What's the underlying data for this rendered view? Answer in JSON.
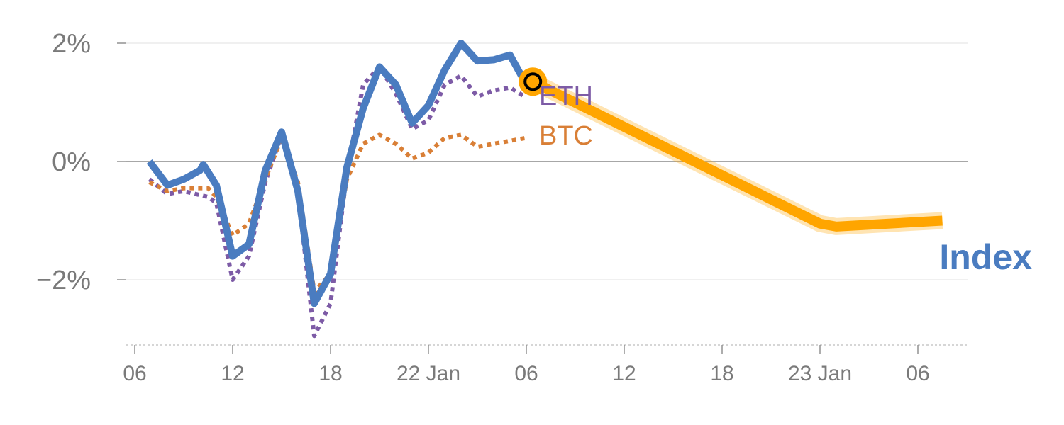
{
  "chart_data": {
    "type": "line",
    "y_ticks": [
      {
        "value": 2,
        "label": "2%"
      },
      {
        "value": 0,
        "label": "0%"
      },
      {
        "value": -2,
        "label": "−2%"
      }
    ],
    "x_ticks": [
      {
        "value": 0,
        "label": "06"
      },
      {
        "value": 6,
        "label": "12"
      },
      {
        "value": 12,
        "label": "18"
      },
      {
        "value": 18,
        "label": "22 Jan"
      },
      {
        "value": 24,
        "label": "06"
      },
      {
        "value": 30,
        "label": "12"
      },
      {
        "value": 36,
        "label": "18"
      },
      {
        "value": 42,
        "label": "23 Jan"
      },
      {
        "value": 48,
        "label": "06"
      }
    ],
    "xlim": [
      0,
      51
    ],
    "ylim": [
      -3.1,
      2.4
    ],
    "grid": true,
    "series": [
      {
        "name": "Index",
        "style": "solid",
        "color": "#4a7cc0",
        "points": [
          [
            0.9,
            0.0
          ],
          [
            2,
            -0.4
          ],
          [
            3,
            -0.3
          ],
          [
            4,
            -0.15
          ],
          [
            4.2,
            -0.05
          ],
          [
            5,
            -0.4
          ],
          [
            6,
            -1.6
          ],
          [
            7,
            -1.4
          ],
          [
            8,
            -0.15
          ],
          [
            9,
            0.5
          ],
          [
            10,
            -0.5
          ],
          [
            11,
            -2.4
          ],
          [
            12,
            -1.9
          ],
          [
            13,
            -0.1
          ],
          [
            14,
            0.9
          ],
          [
            15,
            1.6
          ],
          [
            16,
            1.3
          ],
          [
            17,
            0.65
          ],
          [
            18,
            0.95
          ],
          [
            19,
            1.55
          ],
          [
            20,
            2.0
          ],
          [
            21,
            1.7
          ],
          [
            22,
            1.72
          ],
          [
            23,
            1.8
          ],
          [
            24,
            1.3
          ]
        ]
      },
      {
        "name": "ETH",
        "style": "dotted",
        "color": "#7d5ba6",
        "points": [
          [
            0.9,
            -0.3
          ],
          [
            2,
            -0.55
          ],
          [
            3,
            -0.5
          ],
          [
            4.5,
            -0.6
          ],
          [
            5,
            -0.7
          ],
          [
            6,
            -2.0
          ],
          [
            7,
            -1.6
          ],
          [
            8,
            -0.35
          ],
          [
            9,
            0.45
          ],
          [
            10,
            -0.5
          ],
          [
            11,
            -2.95
          ],
          [
            12,
            -2.4
          ],
          [
            13,
            -0.2
          ],
          [
            14,
            1.3
          ],
          [
            15,
            1.6
          ],
          [
            16,
            1.15
          ],
          [
            17,
            0.55
          ],
          [
            18,
            0.7
          ],
          [
            19,
            1.3
          ],
          [
            20,
            1.45
          ],
          [
            21,
            1.1
          ],
          [
            22,
            1.2
          ],
          [
            23,
            1.25
          ],
          [
            24,
            1.08
          ]
        ]
      },
      {
        "name": "BTC",
        "style": "dotted",
        "color": "#d97f36",
        "points": [
          [
            0.9,
            -0.35
          ],
          [
            2,
            -0.5
          ],
          [
            3,
            -0.45
          ],
          [
            4.5,
            -0.45
          ],
          [
            5,
            -0.6
          ],
          [
            6,
            -1.25
          ],
          [
            7,
            -1.05
          ],
          [
            8,
            -0.3
          ],
          [
            9,
            0.4
          ],
          [
            10,
            -0.35
          ],
          [
            11,
            -2.2
          ],
          [
            12,
            -1.9
          ],
          [
            13,
            -0.3
          ],
          [
            14,
            0.3
          ],
          [
            15,
            0.45
          ],
          [
            16,
            0.3
          ],
          [
            17,
            0.05
          ],
          [
            18,
            0.15
          ],
          [
            19,
            0.4
          ],
          [
            20,
            0.45
          ],
          [
            21,
            0.25
          ],
          [
            22,
            0.3
          ],
          [
            23,
            0.35
          ],
          [
            24,
            0.4
          ]
        ]
      }
    ],
    "forecast": {
      "color": "#ffa500",
      "points": [
        [
          24.4,
          1.35
        ],
        [
          42,
          -1.05
        ],
        [
          43,
          -1.1
        ],
        [
          49.5,
          -1.0
        ]
      ]
    }
  }
}
